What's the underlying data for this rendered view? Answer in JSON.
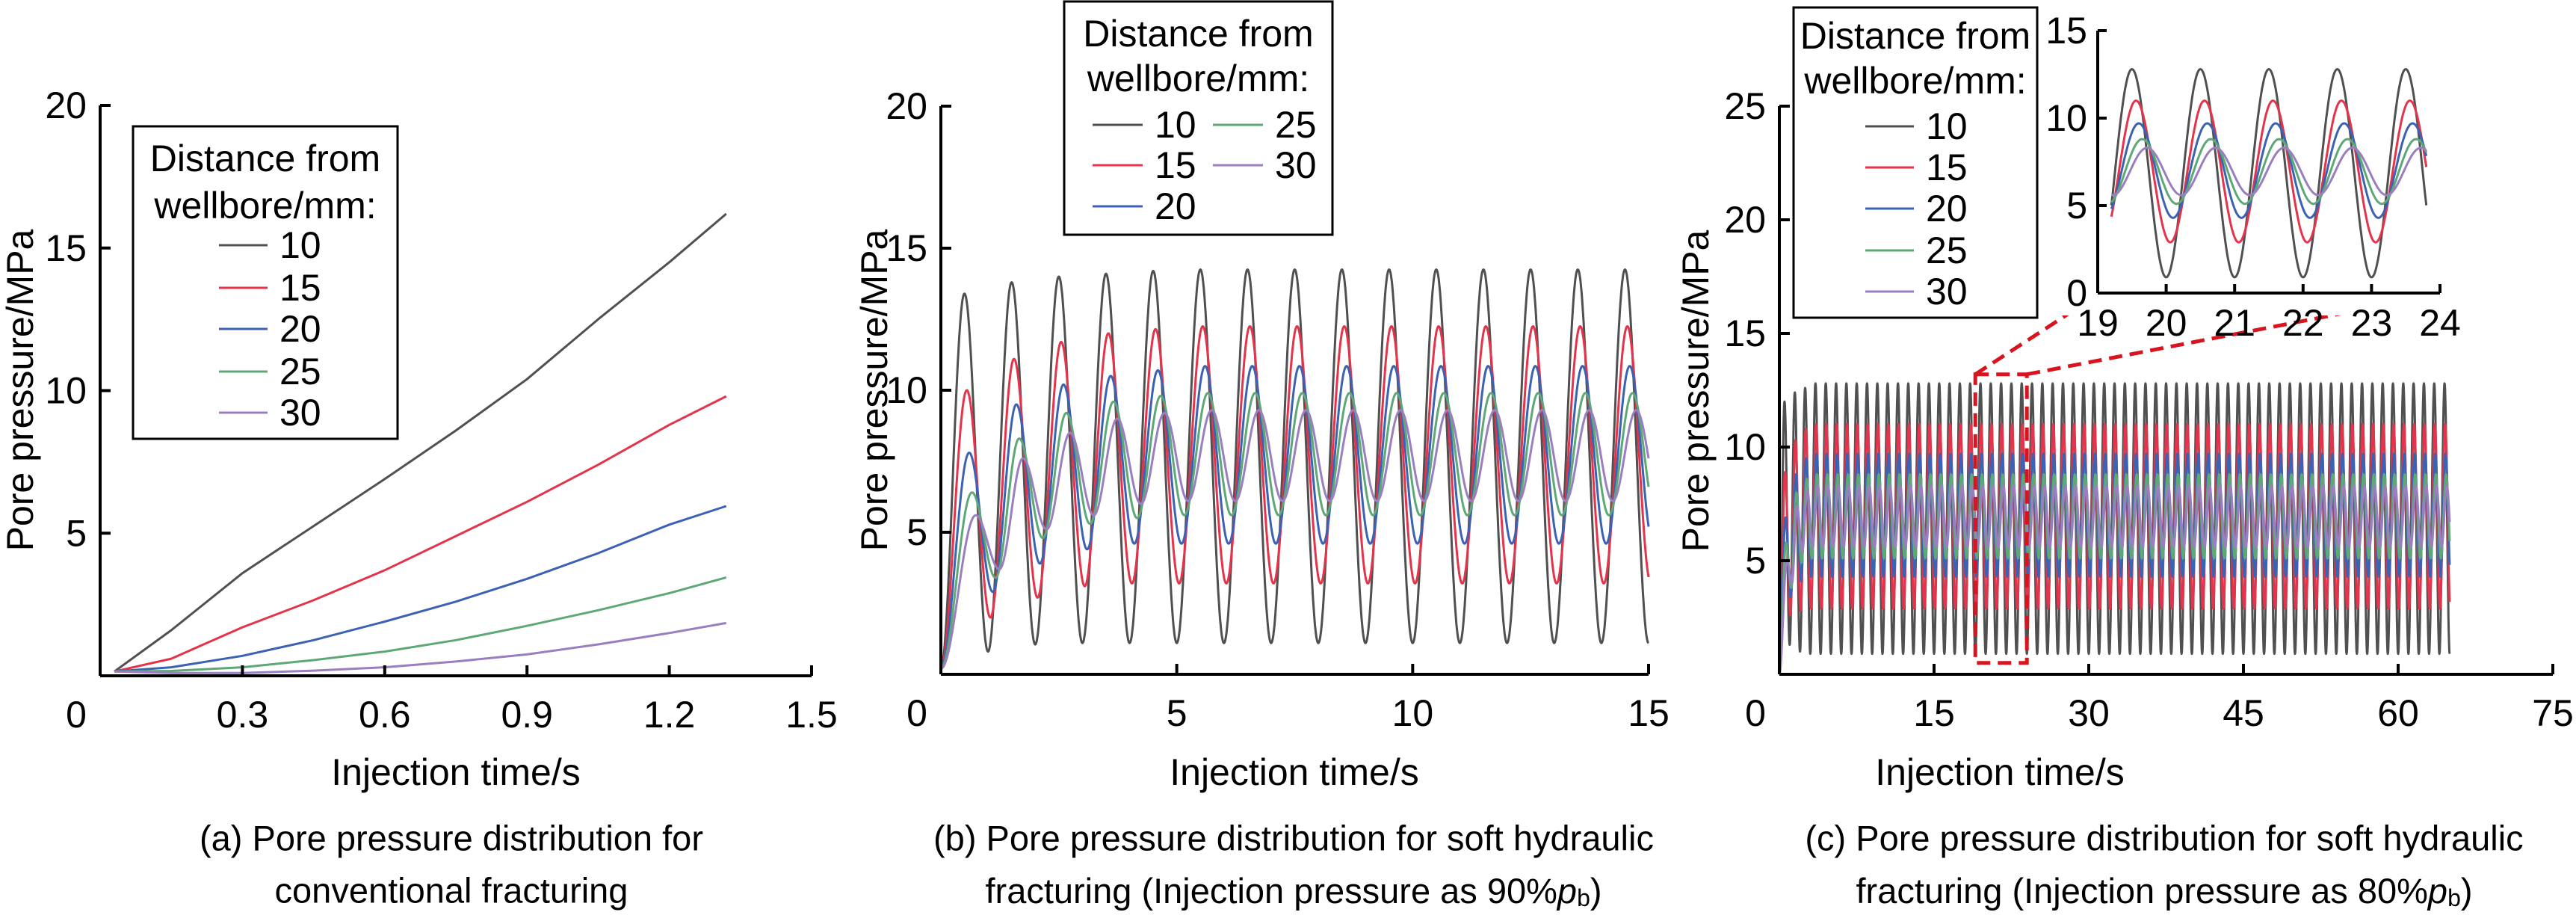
{
  "legend": {
    "title_line1": "Distance from",
    "title_line2": "wellbore/mm:"
  },
  "colors": {
    "10": "#505050",
    "15": "#e3344b",
    "20": "#3b62b3",
    "25": "#5ea877",
    "30": "#9a7fc0",
    "zoom_marker": "#d8141e"
  },
  "chart_data": [
    {
      "type": "line",
      "panel": "a",
      "xlabel": "Injection time/s",
      "ylabel": "Pore pressure/MPa",
      "xlim": [
        0,
        1.5
      ],
      "ylim": [
        0,
        20
      ],
      "x_ticks": [
        "0",
        "0.3",
        "0.6",
        "0.9",
        "1.2",
        "1.5"
      ],
      "y_ticks": [
        "5",
        "10",
        "15",
        "20"
      ],
      "legend_title": "Distance from wellbore/mm:",
      "legend_position": "top-left",
      "caption_line1": "(a) Pore pressure distribution for",
      "caption_line2": "conventional fracturing",
      "x": [
        0.03,
        0.15,
        0.3,
        0.45,
        0.6,
        0.75,
        0.9,
        1.05,
        1.2,
        1.32
      ],
      "series": [
        {
          "name": "10",
          "values": [
            0.15,
            1.6,
            3.6,
            5.25,
            6.9,
            8.6,
            10.4,
            12.5,
            14.5,
            16.2
          ]
        },
        {
          "name": "15",
          "values": [
            0.15,
            0.6,
            1.7,
            2.65,
            3.7,
            4.9,
            6.1,
            7.4,
            8.8,
            9.8
          ]
        },
        {
          "name": "20",
          "values": [
            0.15,
            0.3,
            0.7,
            1.25,
            1.9,
            2.6,
            3.4,
            4.3,
            5.3,
            5.95
          ]
        },
        {
          "name": "25",
          "values": [
            0.15,
            0.17,
            0.3,
            0.55,
            0.85,
            1.25,
            1.75,
            2.3,
            2.9,
            3.45
          ]
        },
        {
          "name": "30",
          "values": [
            0.15,
            0.1,
            0.1,
            0.18,
            0.3,
            0.5,
            0.75,
            1.1,
            1.5,
            1.85
          ]
        }
      ]
    },
    {
      "type": "line",
      "panel": "b",
      "xlabel": "Injection time/s",
      "ylabel": "Pore pressure/MPa",
      "xlim": [
        0,
        15
      ],
      "ylim": [
        0,
        20
      ],
      "x_ticks": [
        "0",
        "5",
        "10",
        "15"
      ],
      "y_ticks": [
        "5",
        "10",
        "15",
        "20"
      ],
      "legend_title": "Distance from wellbore/mm:",
      "legend_position": "top-center",
      "caption_line1": "(b) Pore pressure distribution for soft hydraulic",
      "caption_line2_pre": "fracturing (Injection pressure as 90%",
      "caption_p": "p",
      "caption_sub": "b",
      "caption_post": ")",
      "oscillation_period_s": 1,
      "t_end": 15,
      "series": [
        {
          "name": "10",
          "start_value": 0.2,
          "first_peak_time": 0.5,
          "peaks": [
            13.4,
            13.8,
            14.0,
            14.1,
            14.2
          ],
          "steady_peak": 14.25,
          "troughs": [
            0.8,
            1.05,
            1.1
          ],
          "steady_trough": 1.1
        },
        {
          "name": "15",
          "start_value": 0.2,
          "first_peak_time": 0.55,
          "peaks": [
            10.0,
            11.1,
            11.7,
            12.0,
            12.15
          ],
          "steady_peak": 12.25,
          "troughs": [
            2.0,
            2.7,
            3.1
          ],
          "steady_trough": 3.2
        },
        {
          "name": "20",
          "start_value": 0.2,
          "first_peak_time": 0.6,
          "peaks": [
            7.8,
            9.5,
            10.2,
            10.5,
            10.7
          ],
          "steady_peak": 10.85,
          "troughs": [
            2.9,
            3.9,
            4.4,
            4.6
          ],
          "steady_trough": 4.6
        },
        {
          "name": "25",
          "start_value": 0.2,
          "first_peak_time": 0.66,
          "peaks": [
            6.4,
            8.3,
            9.2,
            9.6,
            9.8
          ],
          "steady_peak": 9.9,
          "troughs": [
            3.4,
            4.8,
            5.3,
            5.5
          ],
          "steady_trough": 5.6
        },
        {
          "name": "30",
          "start_value": 0.2,
          "first_peak_time": 0.74,
          "peaks": [
            5.6,
            7.6,
            8.5,
            9.0,
            9.2
          ],
          "steady_peak": 9.3,
          "troughs": [
            3.7,
            5.1,
            5.6,
            6.0
          ],
          "steady_trough": 6.1
        }
      ]
    },
    {
      "type": "line",
      "panel": "c",
      "xlabel": "Injection time/s",
      "ylabel": "Pore pressure/MPa",
      "xlim": [
        0,
        75
      ],
      "ylim": [
        0,
        25
      ],
      "x_ticks": [
        "0",
        "15",
        "30",
        "45",
        "60",
        "75"
      ],
      "y_ticks": [
        "5",
        "10",
        "15",
        "20",
        "25"
      ],
      "legend_title": "Distance from wellbore/mm:",
      "legend_position": "top-left",
      "caption_line1": "(c) Pore pressure distribution for soft hydraulic",
      "caption_line2_pre": "fracturing (Injection pressure as 80%",
      "caption_p": "p",
      "caption_sub": "b",
      "caption_post": ")",
      "oscillation_period_s": 1,
      "t_end": 65,
      "zoom_region": {
        "xlim": [
          19,
          24
        ],
        "ylim": [
          0.5,
          13.2
        ]
      },
      "inset": {
        "xlim": [
          19,
          24
        ],
        "ylim": [
          0,
          15
        ],
        "x_ticks": [
          "19",
          "20",
          "21",
          "22",
          "23",
          "24"
        ],
        "y_ticks": [
          "0",
          "5",
          "10",
          "15"
        ],
        "data_range": [
          19.2,
          23.8
        ]
      },
      "series": [
        {
          "name": "10",
          "start_value": 0.0,
          "first_peak_time": 0.5,
          "peaks": [
            12.0,
            12.4,
            12.6
          ],
          "steady_peak": 12.8,
          "troughs": [
            1.3,
            1.0
          ],
          "steady_trough": 0.9
        },
        {
          "name": "15",
          "start_value": 0.0,
          "first_peak_time": 0.56,
          "peaks": [
            8.9,
            10.3,
            10.8
          ],
          "steady_peak": 11.0,
          "troughs": [
            2.6,
            2.8
          ],
          "steady_trough": 2.9
        },
        {
          "name": "20",
          "start_value": 0.0,
          "first_peak_time": 0.6,
          "peaks": [
            6.9,
            8.8,
            9.5
          ],
          "steady_peak": 9.7,
          "troughs": [
            3.4,
            4.1
          ],
          "steady_trough": 4.3
        },
        {
          "name": "25",
          "start_value": 0.0,
          "first_peak_time": 0.65,
          "peaks": [
            5.8,
            8.0,
            8.6
          ],
          "steady_peak": 8.8,
          "troughs": [
            3.8,
            4.9
          ],
          "steady_trough": 5.1
        },
        {
          "name": "30",
          "start_value": 0.0,
          "first_peak_time": 0.72,
          "peaks": [
            5.0,
            7.4,
            8.1
          ],
          "steady_peak": 8.3,
          "troughs": [
            4.0,
            5.4
          ],
          "steady_trough": 5.6
        }
      ]
    }
  ]
}
